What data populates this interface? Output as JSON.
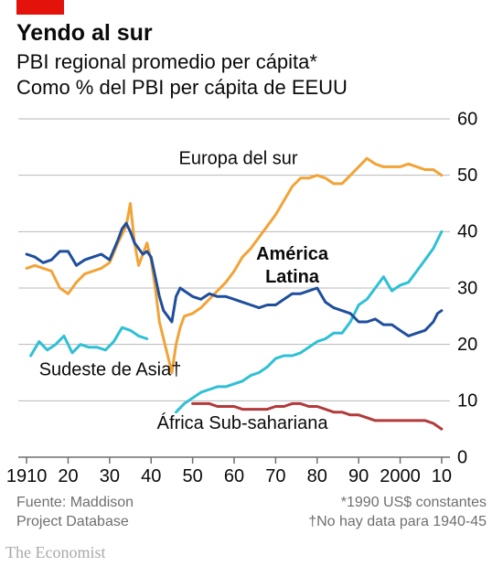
{
  "brand_color": "#e3120b",
  "title": "Yendo al sur",
  "subtitle_line1": "PBI regional promedio per cápita*",
  "subtitle_line2": "Como % del PBI per cápita de EEUU",
  "chart": {
    "type": "line",
    "background_color": "#ffffff",
    "grid_color": "#b8b8b8",
    "baseline_color": "#6f6f6f",
    "xlim": [
      1908,
      2012
    ],
    "ylim": [
      0,
      60
    ],
    "ytick_step": 10,
    "yticks": [
      0,
      10,
      20,
      30,
      40,
      50,
      60
    ],
    "xticks": [
      1910,
      1920,
      1930,
      1940,
      1950,
      1960,
      1970,
      1980,
      1990,
      2000,
      2010
    ],
    "xtick_labels": [
      "1910",
      "20",
      "30",
      "40",
      "50",
      "60",
      "70",
      "80",
      "90",
      "2000",
      "10"
    ],
    "tick_fontsize": 20,
    "line_width": 3,
    "series": {
      "southern_europe": {
        "label": "Europa del sur",
        "color": "#f2a336",
        "label_xy": [
          1961,
          52
        ],
        "data": [
          [
            1910,
            33.5
          ],
          [
            1912,
            34
          ],
          [
            1914,
            33.5
          ],
          [
            1916,
            33
          ],
          [
            1918,
            30
          ],
          [
            1920,
            29
          ],
          [
            1922,
            31
          ],
          [
            1924,
            32.5
          ],
          [
            1926,
            33
          ],
          [
            1928,
            33.5
          ],
          [
            1930,
            34.5
          ],
          [
            1932,
            38
          ],
          [
            1934,
            41
          ],
          [
            1935,
            45
          ],
          [
            1936,
            38
          ],
          [
            1937,
            34
          ],
          [
            1938,
            36
          ],
          [
            1939,
            38
          ],
          [
            1940,
            35
          ],
          [
            1941,
            30
          ],
          [
            1942,
            24
          ],
          [
            1944,
            18
          ],
          [
            1945,
            15
          ],
          [
            1946,
            20
          ],
          [
            1947,
            23
          ],
          [
            1948,
            25
          ],
          [
            1950,
            25.5
          ],
          [
            1952,
            26.5
          ],
          [
            1954,
            28
          ],
          [
            1956,
            29.5
          ],
          [
            1958,
            31
          ],
          [
            1960,
            33
          ],
          [
            1962,
            35.5
          ],
          [
            1964,
            37
          ],
          [
            1966,
            39
          ],
          [
            1968,
            41
          ],
          [
            1970,
            43
          ],
          [
            1972,
            45.5
          ],
          [
            1974,
            48
          ],
          [
            1976,
            49.5
          ],
          [
            1978,
            49.5
          ],
          [
            1980,
            50
          ],
          [
            1982,
            49.5
          ],
          [
            1984,
            48.5
          ],
          [
            1986,
            48.5
          ],
          [
            1988,
            50
          ],
          [
            1990,
            51.5
          ],
          [
            1992,
            53
          ],
          [
            1994,
            52
          ],
          [
            1996,
            51.5
          ],
          [
            1998,
            51.5
          ],
          [
            2000,
            51.5
          ],
          [
            2002,
            52
          ],
          [
            2004,
            51.5
          ],
          [
            2006,
            51
          ],
          [
            2008,
            51
          ],
          [
            2010,
            50
          ]
        ]
      },
      "latin_america": {
        "label": "América Latina",
        "color": "#1f4e9c",
        "label_bold": true,
        "label_xy": [
          1974,
          35
        ],
        "label_xy2": [
          1974,
          31
        ],
        "label_line1": "América",
        "label_line2": "Latina",
        "data": [
          [
            1910,
            36
          ],
          [
            1912,
            35.5
          ],
          [
            1914,
            34.5
          ],
          [
            1916,
            35
          ],
          [
            1918,
            36.5
          ],
          [
            1920,
            36.5
          ],
          [
            1922,
            34
          ],
          [
            1924,
            35
          ],
          [
            1926,
            35.5
          ],
          [
            1928,
            36
          ],
          [
            1930,
            35
          ],
          [
            1932,
            38.5
          ],
          [
            1933,
            40.5
          ],
          [
            1934,
            41.5
          ],
          [
            1935,
            40
          ],
          [
            1936,
            38
          ],
          [
            1938,
            36
          ],
          [
            1939,
            36.5
          ],
          [
            1940,
            35.5
          ],
          [
            1941,
            32
          ],
          [
            1942,
            28.5
          ],
          [
            1943,
            26
          ],
          [
            1944,
            25
          ],
          [
            1945,
            24
          ],
          [
            1946,
            28.5
          ],
          [
            1947,
            30
          ],
          [
            1948,
            29.5
          ],
          [
            1950,
            28.5
          ],
          [
            1952,
            28
          ],
          [
            1954,
            29
          ],
          [
            1956,
            28.5
          ],
          [
            1958,
            28.5
          ],
          [
            1960,
            28
          ],
          [
            1962,
            27.5
          ],
          [
            1964,
            27
          ],
          [
            1966,
            26.5
          ],
          [
            1968,
            27
          ],
          [
            1970,
            27
          ],
          [
            1972,
            28
          ],
          [
            1974,
            29
          ],
          [
            1976,
            29
          ],
          [
            1978,
            29.5
          ],
          [
            1980,
            30
          ],
          [
            1982,
            27.5
          ],
          [
            1984,
            26.5
          ],
          [
            1986,
            26
          ],
          [
            1988,
            25.5
          ],
          [
            1990,
            24
          ],
          [
            1992,
            24
          ],
          [
            1994,
            24.5
          ],
          [
            1996,
            23.5
          ],
          [
            1998,
            23.5
          ],
          [
            2000,
            22.5
          ],
          [
            2002,
            21.5
          ],
          [
            2004,
            22
          ],
          [
            2006,
            22.5
          ],
          [
            2008,
            24
          ],
          [
            2009,
            25.5
          ],
          [
            2010,
            26
          ]
        ]
      },
      "se_asia": {
        "label": "Sudeste de Asia†",
        "color": "#2fc0d6",
        "label_xy": [
          1913,
          14.5
        ],
        "label_anchor": "start",
        "data": [
          [
            1911,
            18
          ],
          [
            1913,
            20.5
          ],
          [
            1915,
            19
          ],
          [
            1917,
            20
          ],
          [
            1919,
            21.5
          ],
          [
            1921,
            18.5
          ],
          [
            1923,
            20
          ],
          [
            1925,
            19.5
          ],
          [
            1927,
            19.5
          ],
          [
            1929,
            19
          ],
          [
            1931,
            20.5
          ],
          [
            1933,
            23
          ],
          [
            1935,
            22.5
          ],
          [
            1937,
            21.5
          ],
          [
            1939,
            21
          ],
          [
            1946,
            8
          ],
          [
            1948,
            9.5
          ],
          [
            1950,
            10.5
          ],
          [
            1952,
            11.5
          ],
          [
            1954,
            12
          ],
          [
            1956,
            12.5
          ],
          [
            1958,
            12.5
          ],
          [
            1960,
            13
          ],
          [
            1962,
            13.5
          ],
          [
            1964,
            14.5
          ],
          [
            1966,
            15
          ],
          [
            1968,
            16
          ],
          [
            1970,
            17.5
          ],
          [
            1972,
            18
          ],
          [
            1974,
            18
          ],
          [
            1976,
            18.5
          ],
          [
            1978,
            19.5
          ],
          [
            1980,
            20.5
          ],
          [
            1982,
            21
          ],
          [
            1984,
            22
          ],
          [
            1986,
            22
          ],
          [
            1988,
            24
          ],
          [
            1990,
            27
          ],
          [
            1992,
            28
          ],
          [
            1994,
            30
          ],
          [
            1996,
            32
          ],
          [
            1998,
            29.5
          ],
          [
            2000,
            30.5
          ],
          [
            2002,
            31
          ],
          [
            2004,
            33
          ],
          [
            2006,
            35
          ],
          [
            2008,
            37
          ],
          [
            2010,
            40
          ]
        ]
      },
      "ss_africa": {
        "label": "África Sub-sahariana",
        "color": "#b23a3a",
        "label_xy": [
          1962,
          5
        ],
        "data": [
          [
            1950,
            9.5
          ],
          [
            1952,
            9.5
          ],
          [
            1954,
            9.5
          ],
          [
            1956,
            9
          ],
          [
            1958,
            9
          ],
          [
            1960,
            9
          ],
          [
            1962,
            8.5
          ],
          [
            1964,
            8.5
          ],
          [
            1966,
            8.5
          ],
          [
            1968,
            8.5
          ],
          [
            1970,
            9
          ],
          [
            1972,
            9
          ],
          [
            1974,
            9.5
          ],
          [
            1976,
            9.5
          ],
          [
            1978,
            9
          ],
          [
            1980,
            9
          ],
          [
            1982,
            8.5
          ],
          [
            1984,
            8
          ],
          [
            1986,
            8
          ],
          [
            1988,
            7.5
          ],
          [
            1990,
            7.5
          ],
          [
            1992,
            7
          ],
          [
            1994,
            6.5
          ],
          [
            1996,
            6.5
          ],
          [
            1998,
            6.5
          ],
          [
            2000,
            6.5
          ],
          [
            2002,
            6.5
          ],
          [
            2004,
            6.5
          ],
          [
            2006,
            6.5
          ],
          [
            2008,
            6
          ],
          [
            2010,
            5
          ]
        ]
      }
    }
  },
  "source_line1": "Fuente: Maddison",
  "source_line2": "Project Database",
  "footnote_line1": "*1990 US$ constantes",
  "footnote_line2": "†No hay data para 1940-45",
  "credit": "The Economist"
}
